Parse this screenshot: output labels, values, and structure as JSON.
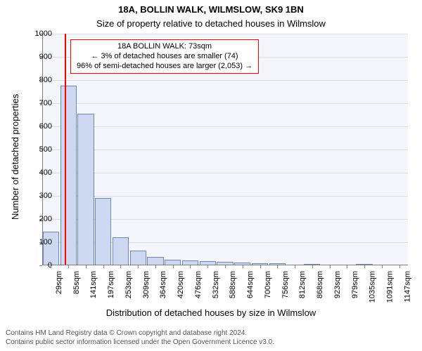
{
  "title": "18A, BOLLIN WALK, WILMSLOW, SK9 1BN",
  "subtitle": "Size of property relative to detached houses in Wilmslow",
  "ylabel": "Number of detached properties",
  "xlabel": "Distribution of detached houses by size in Wilmslow",
  "footer_line1": "Contains HM Land Registry data © Crown copyright and database right 2024.",
  "footer_line2": "Contains public sector information licensed under the Open Government Licence v3.0.",
  "title_fontsize": 13,
  "subtitle_fontsize": 13,
  "axis_label_fontsize": 13,
  "tick_fontsize": 11,
  "footer_fontsize": 10,
  "callout_fontsize": 11,
  "plot_background": "#f4f6fb",
  "bar_fill": "#cdd9f0",
  "bar_border": "#6f85b5",
  "grid_color": "#d9deeb",
  "axis_color": "#808080",
  "marker_color": "#ff0000",
  "text_color": "#000000",
  "footer_color": "#555555",
  "chart": {
    "type": "histogram",
    "ylim": [
      0,
      1000
    ],
    "ytick_step": 100,
    "bar_width_ratio": 0.94,
    "marker_value": 73,
    "categories": [
      "29sqm",
      "85sqm",
      "141sqm",
      "197sqm",
      "253sqm",
      "309sqm",
      "364sqm",
      "420sqm",
      "476sqm",
      "532sqm",
      "588sqm",
      "644sqm",
      "700sqm",
      "756sqm",
      "812sqm",
      "868sqm",
      "923sqm",
      "979sqm",
      "1035sqm",
      "1091sqm",
      "1147sqm"
    ],
    "values": [
      145,
      775,
      655,
      290,
      120,
      65,
      35,
      25,
      20,
      18,
      15,
      12,
      10,
      10,
      0,
      5,
      0,
      0,
      3,
      0,
      0
    ]
  },
  "callout": {
    "line1": "18A BOLLIN WALK: 73sqm",
    "line2": "← 3% of detached houses are smaller (74)",
    "line3": "96% of semi-detached houses are larger (2,053) →",
    "border_color": "#ff0000"
  }
}
